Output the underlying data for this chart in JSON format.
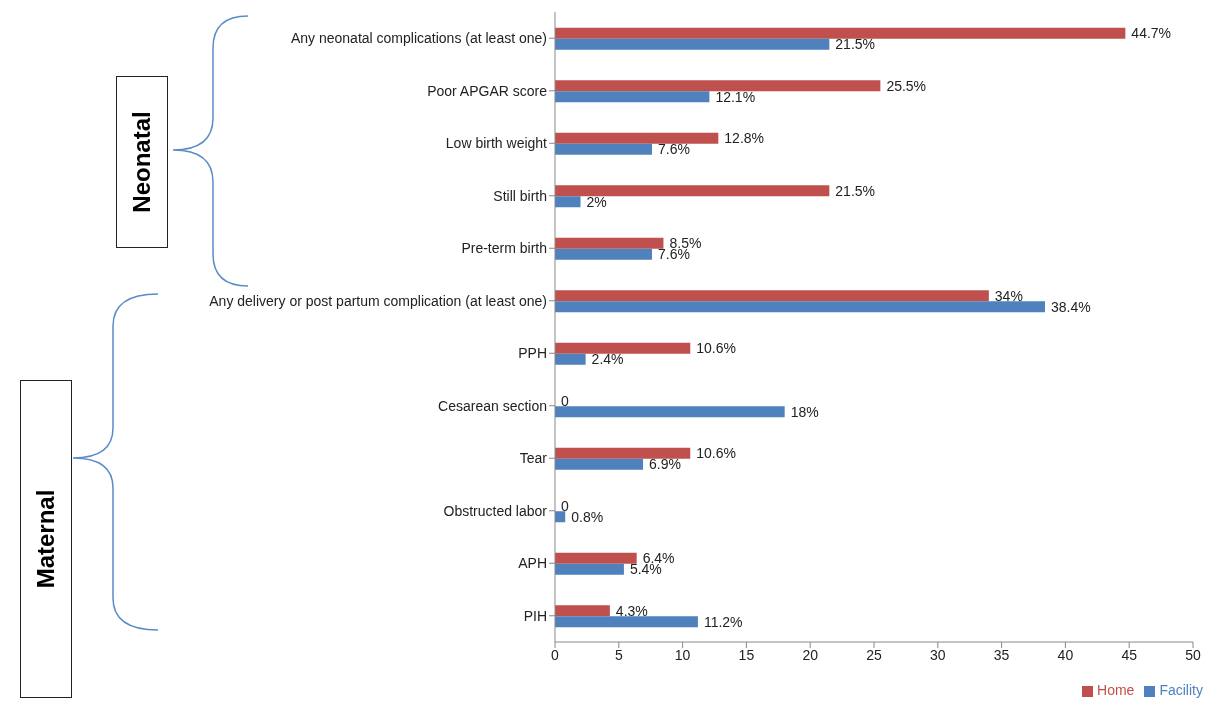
{
  "chart_data": {
    "type": "bar",
    "orientation": "horizontal",
    "categories": [
      "Any  neonatal complications (at least one)",
      "Poor APGAR score",
      "Low birth weight",
      "Still birth",
      "Pre-term birth",
      "Any delivery or post partum complication (at least one)",
      "PPH",
      "Cesarean section",
      "Tear",
      "Obstructed labor",
      "APH",
      "PIH"
    ],
    "series": [
      {
        "name": "Home",
        "color": "#c0504d",
        "values": [
          44.7,
          25.5,
          12.8,
          21.5,
          8.5,
          34,
          10.6,
          0,
          10.6,
          0,
          6.4,
          4.3
        ],
        "value_labels": [
          "44.7%",
          "25.5%",
          "12.8%",
          "21.5%",
          "8.5%",
          "34%",
          "10.6%",
          "0",
          "10.6%",
          "0",
          "6.4%",
          "4.3%"
        ]
      },
      {
        "name": "Facility",
        "color": "#4f81bd",
        "values": [
          21.5,
          12.1,
          7.6,
          2,
          7.6,
          38.4,
          2.4,
          18,
          6.9,
          0.8,
          5.4,
          11.2
        ],
        "value_labels": [
          "21.5%",
          "12.1%",
          "7.6%",
          "2%",
          "7.6%",
          "38.4%",
          "2.4%",
          "18%",
          "6.9%",
          "0.8%",
          "5.4%",
          "11.2%"
        ]
      }
    ],
    "xlim": [
      0,
      50
    ],
    "xticks": [
      0,
      5,
      10,
      15,
      20,
      25,
      30,
      35,
      40,
      45,
      50
    ],
    "legend": "bottom",
    "annotations": [
      "Neonatal",
      "Maternal"
    ]
  }
}
